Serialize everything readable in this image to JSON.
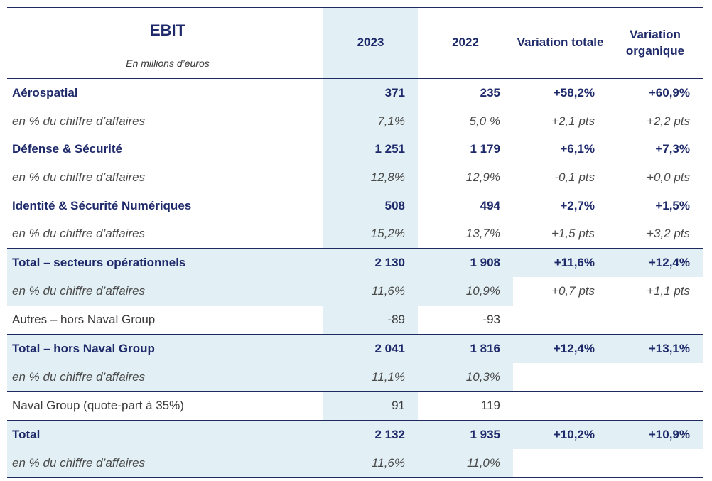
{
  "header": {
    "title": "EBIT",
    "unit": "En millions d’euros",
    "columns": [
      "2023",
      "2022",
      "Variation totale",
      "Variation organique"
    ]
  },
  "colors": {
    "navy": "#1f2a6b",
    "shade": "#e2f0f5"
  },
  "rows": [
    {
      "type": "segment",
      "label": "Aérospatial",
      "values": [
        "371",
        "235",
        "+58,2%",
        "+60,9%"
      ]
    },
    {
      "type": "pct",
      "label": "en % du chiffre d’affaires",
      "values": [
        "7,1%",
        "5,0 %",
        "+2,1 pts",
        "+2,2 pts"
      ]
    },
    {
      "type": "segment",
      "label": "Défense & Sécurité",
      "values": [
        "1 251",
        "1 179",
        "+6,1%",
        "+7,3%"
      ]
    },
    {
      "type": "pct",
      "label": "en % du chiffre d’affaires",
      "values": [
        "12,8%",
        "12,9%",
        "-0,1 pts",
        "+0,0 pts"
      ]
    },
    {
      "type": "segment",
      "label": "Identité & Sécurité Numériques",
      "values": [
        "508",
        "494",
        "+2,7%",
        "+1,5%"
      ]
    },
    {
      "type": "pct",
      "label": "en % du chiffre d’affaires",
      "values": [
        "15,2%",
        "13,7%",
        "+1,5 pts",
        "+3,2 pts"
      ]
    },
    {
      "type": "total",
      "label": "Total – secteurs opérationnels",
      "values": [
        "2 130",
        "1 908",
        "+11,6%",
        "+12,4%"
      ]
    },
    {
      "type": "totalpct",
      "label": "en % du chiffre d’affaires",
      "values": [
        "11,6%",
        "10,9%",
        "+0,7 pts",
        "+1,1 pts"
      ]
    },
    {
      "type": "other",
      "label": "Autres – hors Naval Group",
      "values": [
        "-89",
        "-93",
        "",
        ""
      ]
    },
    {
      "type": "total",
      "label": "Total – hors Naval Group",
      "values": [
        "2 041",
        "1 816",
        "+12,4%",
        "+13,1%"
      ]
    },
    {
      "type": "totalpct",
      "label": "en % du chiffre d’affaires",
      "values": [
        "11,1%",
        "10,3%",
        "",
        ""
      ]
    },
    {
      "type": "other",
      "label": "Naval Group (quote-part à 35%)",
      "values": [
        "91",
        "119",
        "",
        ""
      ]
    },
    {
      "type": "total",
      "label": "Total",
      "values": [
        "2 132",
        "1 935",
        "+10,2%",
        "+10,9%"
      ]
    },
    {
      "type": "totalpct",
      "label": "en % du chiffre d’affaires",
      "values": [
        "11,6%",
        "11,0%",
        "",
        ""
      ]
    }
  ]
}
